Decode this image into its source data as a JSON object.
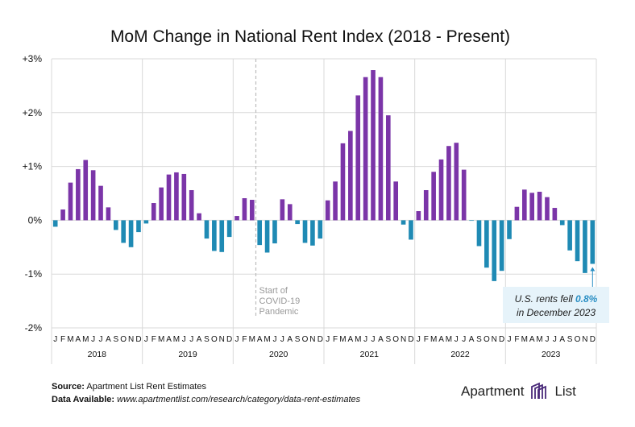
{
  "chart_data": {
    "type": "bar",
    "title": "MoM Change in National Rent Index (2018 - Present)",
    "ylabel": "",
    "xlabel": "",
    "ylim": [
      -2,
      3
    ],
    "yticks": [
      3,
      2,
      1,
      0,
      -1,
      -2
    ],
    "ytick_labels": [
      "+3%",
      "+2%",
      "+1%",
      "0%",
      "-1%",
      "-2%"
    ],
    "month_labels": [
      "J",
      "F",
      "M",
      "A",
      "M",
      "J",
      "J",
      "A",
      "S",
      "O",
      "N",
      "D"
    ],
    "years": [
      "2018",
      "2019",
      "2020",
      "2021",
      "2022",
      "2023"
    ],
    "positive_color": "#7b35a8",
    "negative_color": "#1f8ab4",
    "values": [
      -0.12,
      0.2,
      0.7,
      0.95,
      1.12,
      0.93,
      0.64,
      0.24,
      -0.18,
      -0.42,
      -0.5,
      -0.22,
      -0.06,
      0.32,
      0.61,
      0.85,
      0.89,
      0.86,
      0.56,
      0.13,
      -0.34,
      -0.57,
      -0.59,
      -0.31,
      0.08,
      0.41,
      0.38,
      -0.46,
      -0.6,
      -0.43,
      0.39,
      0.3,
      -0.07,
      -0.42,
      -0.47,
      -0.34,
      0.37,
      0.72,
      1.43,
      1.66,
      2.32,
      2.66,
      2.79,
      2.66,
      1.95,
      0.72,
      -0.08,
      -0.36,
      0.17,
      0.56,
      0.9,
      1.13,
      1.38,
      1.44,
      0.94,
      -0.01,
      -0.48,
      -0.88,
      -1.13,
      -0.94,
      -0.35,
      0.25,
      0.57,
      0.51,
      0.53,
      0.43,
      0.23,
      -0.09,
      -0.56,
      -0.76,
      -0.98,
      -0.81
    ],
    "annotations": {
      "covid_index": 27,
      "covid_text": [
        "Start of",
        "COVID-19",
        "Pandemic"
      ],
      "callout_line1_prefix": "U.S. rents fell ",
      "callout_value": "0.8%",
      "callout_line2": "in December 2023"
    }
  },
  "footer": {
    "source_label": "Source:",
    "source_text": "Apartment List Rent Estimates",
    "data_label": "Data Available:",
    "data_link": "www.apartmentlist.com/research/category/data-rent-estimates"
  },
  "logo": {
    "word1": "Apartment",
    "word2": "List"
  }
}
